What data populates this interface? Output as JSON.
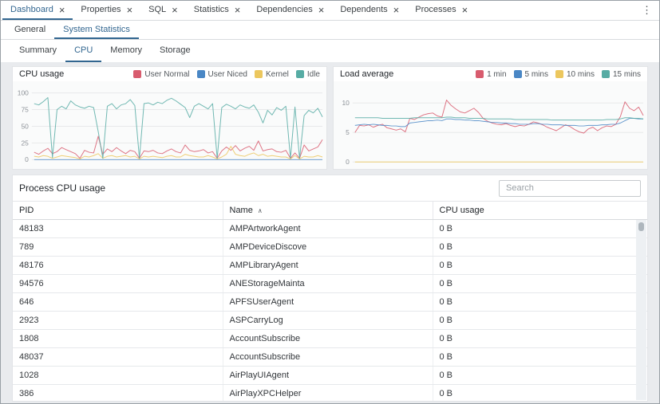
{
  "icons": {
    "close": "×",
    "menu": "⋮",
    "sort_asc": "∧"
  },
  "accent_color": "#326690",
  "tabs": [
    {
      "label": "Dashboard",
      "active": true
    },
    {
      "label": "Properties",
      "active": false
    },
    {
      "label": "SQL",
      "active": false
    },
    {
      "label": "Statistics",
      "active": false
    },
    {
      "label": "Dependencies",
      "active": false
    },
    {
      "label": "Dependents",
      "active": false
    },
    {
      "label": "Processes",
      "active": false
    }
  ],
  "subtabs": [
    {
      "label": "General",
      "active": false
    },
    {
      "label": "System Statistics",
      "active": true
    }
  ],
  "stat_tabs": [
    {
      "label": "Summary",
      "active": false
    },
    {
      "label": "CPU",
      "active": true
    },
    {
      "label": "Memory",
      "active": false
    },
    {
      "label": "Storage",
      "active": false
    }
  ],
  "chart_data": [
    {
      "type": "line",
      "title": "CPU usage",
      "xlabel": "",
      "ylabel": "",
      "ylim": [
        0,
        100
      ],
      "yticks": [
        0,
        25,
        50,
        75,
        100
      ],
      "grid": true,
      "legend_position": "top-right",
      "series": [
        {
          "name": "User Normal",
          "color": "#d85c6e",
          "values": [
            11,
            8,
            13,
            17,
            9,
            12,
            18,
            15,
            12,
            9,
            2,
            14,
            11,
            10,
            35,
            8,
            16,
            12,
            18,
            13,
            9,
            14,
            12,
            2,
            13,
            12,
            14,
            10,
            9,
            13,
            16,
            12,
            10,
            22,
            14,
            12,
            13,
            15,
            10,
            12,
            2,
            13,
            19,
            14,
            21,
            13,
            17,
            20,
            14,
            28,
            13,
            15,
            16,
            12,
            11,
            14,
            2,
            10,
            2,
            22,
            13,
            16,
            19,
            30
          ]
        },
        {
          "name": "User Niced",
          "color": "#4a87c5",
          "values": [
            0,
            0,
            0,
            0,
            0,
            0,
            0,
            0,
            0,
            0,
            0,
            0,
            0,
            0,
            0,
            0,
            0,
            0,
            0,
            0,
            0,
            0,
            0,
            0,
            0,
            0,
            0,
            0,
            0,
            0,
            0,
            0,
            0,
            0,
            0,
            0,
            0,
            0,
            0,
            0,
            0,
            0,
            0,
            0,
            0,
            0,
            0,
            0,
            0,
            0,
            0,
            0,
            0,
            0,
            0,
            0,
            0,
            0,
            0,
            0,
            0,
            0,
            0,
            0
          ]
        },
        {
          "name": "Kernel",
          "color": "#ecc75e",
          "values": [
            5,
            4,
            6,
            5,
            2,
            4,
            6,
            5,
            4,
            3,
            1,
            5,
            4,
            6,
            9,
            2,
            5,
            6,
            4,
            5,
            6,
            4,
            5,
            1,
            5,
            4,
            5,
            4,
            3,
            5,
            6,
            4,
            4,
            8,
            6,
            5,
            4,
            4,
            6,
            4,
            1,
            4,
            8,
            20,
            8,
            6,
            5,
            8,
            10,
            6,
            8,
            5,
            6,
            5,
            4,
            4,
            1,
            6,
            1,
            5,
            4,
            4,
            6,
            4
          ]
        },
        {
          "name": "Idle",
          "color": "#57aca4",
          "values": [
            84,
            82,
            87,
            93,
            3,
            75,
            80,
            76,
            88,
            82,
            79,
            77,
            80,
            78,
            42,
            2,
            80,
            84,
            76,
            82,
            84,
            90,
            81,
            2,
            84,
            85,
            82,
            86,
            84,
            89,
            92,
            88,
            83,
            78,
            63,
            80,
            84,
            80,
            76,
            84,
            2,
            78,
            83,
            80,
            76,
            82,
            79,
            77,
            82,
            71,
            55,
            74,
            67,
            78,
            74,
            80,
            2,
            79,
            2,
            66,
            74,
            70,
            77,
            64
          ]
        }
      ]
    },
    {
      "type": "line",
      "title": "Load average",
      "xlabel": "",
      "ylabel": "",
      "ylim": [
        0,
        11
      ],
      "yticks": [
        0,
        5,
        10
      ],
      "grid": true,
      "legend_position": "top-right",
      "series": [
        {
          "name": "1 min",
          "color": "#d85c6e",
          "values": [
            5.0,
            6.2,
            6.1,
            6.3,
            5.9,
            6.2,
            6.4,
            5.8,
            5.6,
            5.4,
            5.6,
            5.1,
            7.4,
            7.2,
            7.6,
            8.0,
            8.2,
            8.3,
            7.8,
            7.6,
            10.5,
            9.6,
            9.0,
            8.5,
            8.3,
            8.7,
            9.1,
            8.4,
            7.4,
            6.9,
            6.6,
            6.4,
            6.3,
            6.5,
            6.2,
            6.0,
            6.2,
            6.1,
            6.4,
            6.8,
            6.6,
            6.3,
            5.9,
            5.6,
            5.3,
            5.8,
            6.3,
            6.0,
            5.5,
            5.1,
            4.9,
            5.6,
            5.9,
            5.3,
            5.8,
            6.1,
            6.0,
            6.4,
            7.7,
            10.2,
            9.1,
            8.7,
            9.3,
            7.9
          ]
        },
        {
          "name": "5 mins",
          "color": "#4a87c5",
          "values": [
            6.2,
            6.3,
            6.4,
            6.3,
            6.4,
            6.3,
            6.2,
            6.2,
            6.1,
            6.1,
            6.0,
            6.0,
            6.6,
            6.7,
            6.8,
            6.9,
            7.0,
            7.0,
            7.1,
            7.0,
            7.3,
            7.3,
            7.2,
            7.2,
            7.1,
            7.1,
            7.0,
            7.0,
            6.9,
            6.8,
            6.7,
            6.7,
            6.6,
            6.6,
            6.5,
            6.5,
            6.4,
            6.4,
            6.4,
            6.5,
            6.5,
            6.4,
            6.4,
            6.3,
            6.3,
            6.3,
            6.2,
            6.2,
            6.2,
            6.1,
            6.1,
            6.2,
            6.2,
            6.2,
            6.3,
            6.3,
            6.4,
            6.4,
            6.6,
            7.0,
            7.4,
            7.4,
            7.3,
            7.3
          ]
        },
        {
          "name": "10 mins",
          "color": "#ecc75e",
          "values": [
            0,
            0,
            0,
            0,
            0,
            0,
            0,
            0,
            0,
            0,
            0,
            0,
            0,
            0,
            0,
            0,
            0,
            0,
            0,
            0,
            0,
            0,
            0,
            0,
            0,
            0,
            0,
            0,
            0,
            0,
            0,
            0,
            0,
            0,
            0,
            0,
            0,
            0,
            0,
            0,
            0,
            0,
            0,
            0,
            0,
            0,
            0,
            0,
            0,
            0,
            0,
            0,
            0,
            0,
            0,
            0,
            0,
            0,
            0,
            0,
            0,
            0,
            0,
            0
          ]
        },
        {
          "name": "15 mins",
          "color": "#57aca4",
          "values": [
            7.5,
            7.5,
            7.5,
            7.5,
            7.5,
            7.5,
            7.4,
            7.4,
            7.4,
            7.4,
            7.4,
            7.4,
            7.4,
            7.5,
            7.5,
            7.5,
            7.5,
            7.5,
            7.5,
            7.5,
            7.6,
            7.6,
            7.5,
            7.5,
            7.5,
            7.4,
            7.4,
            7.4,
            7.4,
            7.3,
            7.3,
            7.3,
            7.3,
            7.3,
            7.3,
            7.2,
            7.2,
            7.2,
            7.2,
            7.2,
            7.2,
            7.2,
            7.2,
            7.1,
            7.1,
            7.1,
            7.1,
            7.1,
            7.1,
            7.1,
            7.1,
            7.1,
            7.1,
            7.1,
            7.1,
            7.2,
            7.2,
            7.2,
            7.3,
            7.5,
            7.5,
            7.4,
            7.4,
            7.3
          ]
        }
      ]
    }
  ],
  "process_panel": {
    "title": "Process CPU usage",
    "search_placeholder": "Search",
    "table": {
      "columns": [
        {
          "label": "PID"
        },
        {
          "label": "Name",
          "sort": "asc"
        },
        {
          "label": "CPU usage"
        }
      ],
      "rows": [
        [
          "48183",
          "AMPArtworkAgent",
          "0 B"
        ],
        [
          "789",
          "AMPDeviceDiscove",
          "0 B"
        ],
        [
          "48176",
          "AMPLibraryAgent",
          "0 B"
        ],
        [
          "94576",
          "ANEStorageMainta",
          "0 B"
        ],
        [
          "646",
          "APFSUserAgent",
          "0 B"
        ],
        [
          "2923",
          "ASPCarryLog",
          "0 B"
        ],
        [
          "1808",
          "AccountSubscribe",
          "0 B"
        ],
        [
          "48037",
          "AccountSubscribe",
          "0 B"
        ],
        [
          "1028",
          "AirPlayUIAgent",
          "0 B"
        ],
        [
          "386",
          "AirPlayXPCHelper",
          "0 B"
        ]
      ]
    }
  }
}
